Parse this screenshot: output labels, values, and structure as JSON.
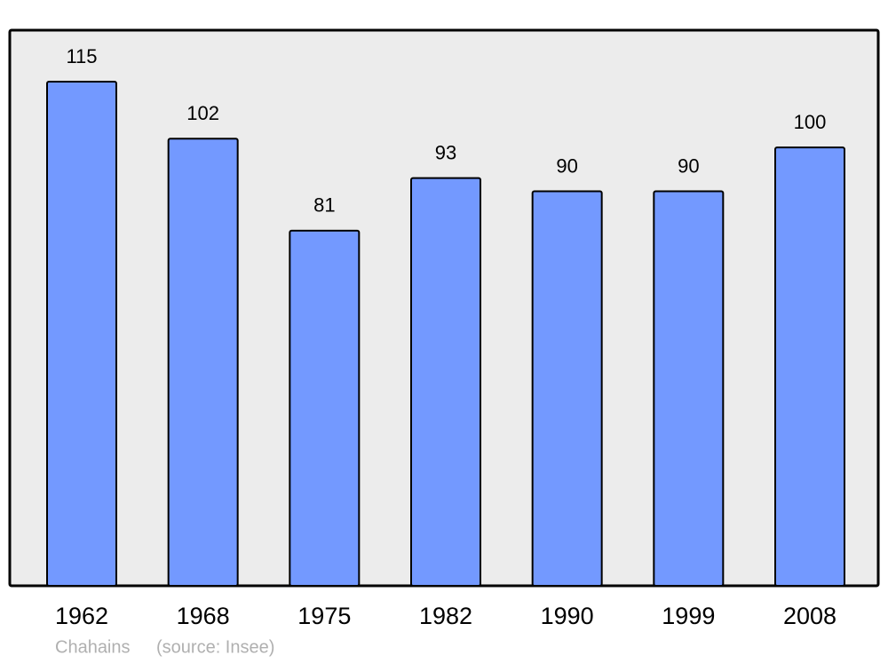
{
  "chart_data": {
    "type": "bar",
    "categories": [
      "1962",
      "1968",
      "1975",
      "1982",
      "1990",
      "1999",
      "2008"
    ],
    "values": [
      115,
      102,
      81,
      93,
      90,
      90,
      100
    ],
    "color": "#7399ff",
    "background": "#ececec",
    "place": "Chahains",
    "source": "(source: Insee)"
  }
}
